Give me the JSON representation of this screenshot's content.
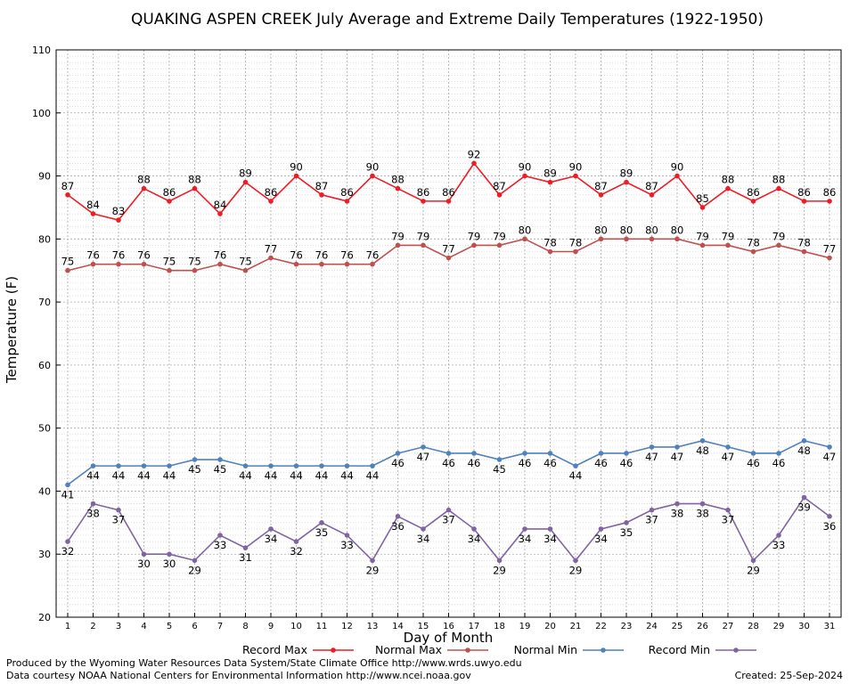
{
  "chart_data": {
    "type": "line",
    "title": "QUAKING ASPEN CREEK July Average and Extreme Daily Temperatures (1922-1950)",
    "xlabel": "Day of Month",
    "ylabel": "Temperature (F)",
    "x": [
      1,
      2,
      3,
      4,
      5,
      6,
      7,
      8,
      9,
      10,
      11,
      12,
      13,
      14,
      15,
      16,
      17,
      18,
      19,
      20,
      21,
      22,
      23,
      24,
      25,
      26,
      27,
      28,
      29,
      30,
      31
    ],
    "yticks": [
      20,
      30,
      40,
      50,
      60,
      70,
      80,
      90,
      100,
      110
    ],
    "ylim": [
      20,
      110
    ],
    "grid": true,
    "legend_position": "bottom",
    "series": [
      {
        "name": "Record Max",
        "color": "#ee1c24",
        "labels": "above",
        "values": [
          87,
          84,
          83,
          88,
          86,
          88,
          84,
          89,
          86,
          90,
          87,
          86,
          90,
          88,
          86,
          86,
          92,
          87,
          90,
          89,
          90,
          87,
          89,
          87,
          90,
          85,
          88,
          86,
          88,
          86,
          86
        ]
      },
      {
        "name": "Normal Max",
        "color": "#c0504d",
        "labels": "above",
        "values": [
          75,
          76,
          76,
          76,
          75,
          75,
          76,
          75,
          77,
          76,
          76,
          76,
          76,
          79,
          79,
          77,
          79,
          79,
          80,
          78,
          78,
          80,
          80,
          80,
          80,
          79,
          79,
          78,
          79,
          78,
          77
        ]
      },
      {
        "name": "Normal Min",
        "color": "#4f81bd",
        "labels": "below",
        "values": [
          41,
          44,
          44,
          44,
          44,
          45,
          45,
          44,
          44,
          44,
          44,
          44,
          44,
          46,
          47,
          46,
          46,
          45,
          46,
          46,
          44,
          46,
          46,
          47,
          47,
          48,
          47,
          46,
          46,
          48,
          47
        ]
      },
      {
        "name": "Record Min",
        "color": "#8064a2",
        "labels": "below",
        "values": [
          32,
          38,
          37,
          30,
          30,
          29,
          33,
          31,
          34,
          32,
          35,
          33,
          29,
          36,
          34,
          37,
          34,
          29,
          34,
          34,
          29,
          34,
          35,
          37,
          38,
          38,
          37,
          29,
          33,
          39,
          36
        ]
      }
    ]
  },
  "footer": {
    "produced_by": "Produced by the Wyoming Water Resources Data System/State Climate Office http://www.wrds.uwyo.edu",
    "courtesy": "Data courtesy NOAA National Centers for Environmental Information http://www.ncei.noaa.gov",
    "created": "Created:  25-Sep-2024"
  }
}
